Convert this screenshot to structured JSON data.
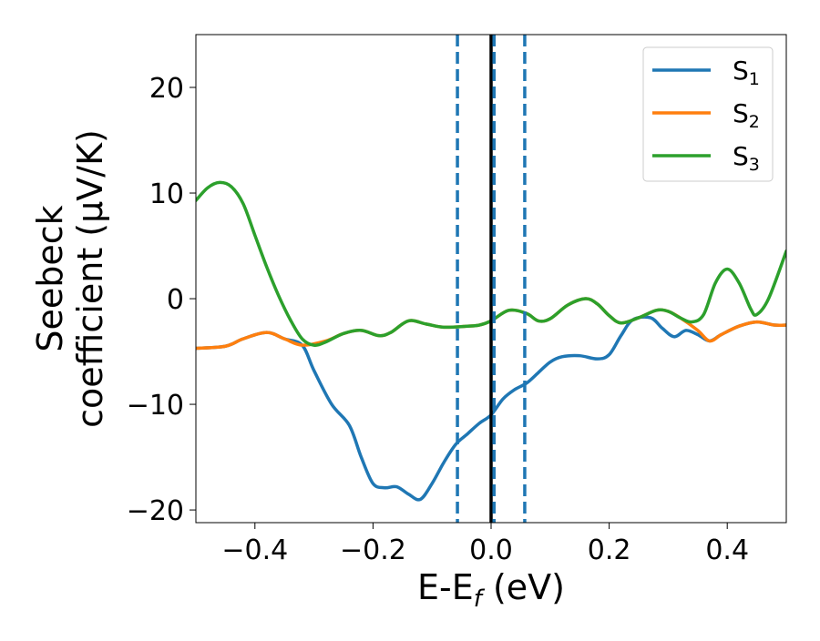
{
  "chart_data": {
    "type": "line",
    "xlabel": {
      "prefix": "E-E",
      "sub": "f",
      "suffix": " (eV)"
    },
    "ylabel": {
      "line1": "Seebeck",
      "line2": "coefficient  (μV/K)"
    },
    "xlim": [
      -0.5,
      0.5
    ],
    "ylim": [
      -21.2,
      25.0
    ],
    "xticks": [
      -0.4,
      -0.2,
      0.0,
      0.2,
      0.4
    ],
    "xtick_labels": [
      "−0.4",
      "−0.2",
      "0.0",
      "0.2",
      "0.4"
    ],
    "yticks": [
      -20,
      -10,
      0,
      10,
      20
    ],
    "ytick_labels": [
      "−20",
      "−10",
      "0",
      "10",
      "20"
    ],
    "grid": false,
    "legend_position": "top-right",
    "series": [
      {
        "name": {
          "base": "S",
          "sub": "1"
        },
        "color": "#1f77b4",
        "points": [
          [
            -0.5,
            -4.7
          ],
          [
            -0.45,
            -4.5
          ],
          [
            -0.42,
            -3.8
          ],
          [
            -0.38,
            -3.2
          ],
          [
            -0.35,
            -3.8
          ],
          [
            -0.32,
            -4.4
          ],
          [
            -0.3,
            -6.8
          ],
          [
            -0.27,
            -10.0
          ],
          [
            -0.24,
            -12.0
          ],
          [
            -0.22,
            -15.0
          ],
          [
            -0.2,
            -17.5
          ],
          [
            -0.18,
            -17.9
          ],
          [
            -0.16,
            -17.8
          ],
          [
            -0.14,
            -18.5
          ],
          [
            -0.12,
            -19.0
          ],
          [
            -0.1,
            -17.5
          ],
          [
            -0.08,
            -15.5
          ],
          [
            -0.06,
            -13.8
          ],
          [
            -0.04,
            -12.8
          ],
          [
            -0.02,
            -11.8
          ],
          [
            0.0,
            -11.0
          ],
          [
            0.02,
            -9.5
          ],
          [
            0.04,
            -8.6
          ],
          [
            0.06,
            -8.0
          ],
          [
            0.08,
            -7.0
          ],
          [
            0.1,
            -6.0
          ],
          [
            0.12,
            -5.5
          ],
          [
            0.15,
            -5.4
          ],
          [
            0.18,
            -5.7
          ],
          [
            0.2,
            -5.3
          ],
          [
            0.22,
            -3.5
          ],
          [
            0.24,
            -2.0
          ],
          [
            0.27,
            -1.8
          ],
          [
            0.29,
            -2.8
          ],
          [
            0.31,
            -3.6
          ],
          [
            0.33,
            -3.0
          ],
          [
            0.35,
            -3.4
          ],
          [
            0.37,
            -4.0
          ],
          [
            0.39,
            -3.4
          ],
          [
            0.42,
            -2.6
          ],
          [
            0.45,
            -2.2
          ],
          [
            0.48,
            -2.5
          ],
          [
            0.5,
            -2.5
          ]
        ]
      },
      {
        "name": {
          "base": "S",
          "sub": "2"
        },
        "color": "#ff7f0e",
        "points": [
          [
            -0.5,
            -4.7
          ],
          [
            -0.45,
            -4.5
          ],
          [
            -0.42,
            -3.8
          ],
          [
            -0.38,
            -3.2
          ],
          [
            -0.35,
            -3.8
          ],
          [
            -0.32,
            -4.4
          ],
          [
            -0.28,
            -4.0
          ],
          [
            -0.25,
            -3.3
          ],
          [
            -0.22,
            -3.0
          ],
          [
            -0.19,
            -3.5
          ],
          [
            -0.17,
            -3.2
          ],
          [
            -0.14,
            -2.1
          ],
          [
            -0.11,
            -2.4
          ],
          [
            -0.08,
            -2.7
          ],
          [
            -0.04,
            -2.6
          ],
          [
            -0.02,
            -2.5
          ],
          [
            0.0,
            -2.1
          ],
          [
            0.03,
            -1.1
          ],
          [
            0.06,
            -1.4
          ],
          [
            0.08,
            -2.1
          ],
          [
            0.1,
            -1.9
          ],
          [
            0.13,
            -0.6
          ],
          [
            0.16,
            0.0
          ],
          [
            0.18,
            -0.5
          ],
          [
            0.2,
            -1.6
          ],
          [
            0.22,
            -2.3
          ],
          [
            0.25,
            -1.8
          ],
          [
            0.28,
            -1.1
          ],
          [
            0.3,
            -1.2
          ],
          [
            0.32,
            -1.8
          ],
          [
            0.35,
            -3.0
          ],
          [
            0.37,
            -4.0
          ],
          [
            0.39,
            -3.4
          ],
          [
            0.42,
            -2.6
          ],
          [
            0.45,
            -2.2
          ],
          [
            0.48,
            -2.5
          ],
          [
            0.5,
            -2.5
          ]
        ]
      },
      {
        "name": {
          "base": "S",
          "sub": "3"
        },
        "color": "#2ca02c",
        "points": [
          [
            -0.5,
            9.3
          ],
          [
            -0.48,
            10.5
          ],
          [
            -0.46,
            11.0
          ],
          [
            -0.44,
            10.6
          ],
          [
            -0.42,
            9.0
          ],
          [
            -0.4,
            6.0
          ],
          [
            -0.38,
            3.0
          ],
          [
            -0.36,
            0.3
          ],
          [
            -0.34,
            -2.0
          ],
          [
            -0.32,
            -3.8
          ],
          [
            -0.3,
            -4.4
          ],
          [
            -0.28,
            -4.1
          ],
          [
            -0.25,
            -3.3
          ],
          [
            -0.22,
            -3.0
          ],
          [
            -0.19,
            -3.5
          ],
          [
            -0.17,
            -3.2
          ],
          [
            -0.14,
            -2.1
          ],
          [
            -0.11,
            -2.4
          ],
          [
            -0.08,
            -2.7
          ],
          [
            -0.04,
            -2.6
          ],
          [
            -0.02,
            -2.5
          ],
          [
            0.0,
            -2.1
          ],
          [
            0.03,
            -1.1
          ],
          [
            0.06,
            -1.4
          ],
          [
            0.08,
            -2.1
          ],
          [
            0.1,
            -1.9
          ],
          [
            0.13,
            -0.6
          ],
          [
            0.16,
            0.0
          ],
          [
            0.18,
            -0.5
          ],
          [
            0.2,
            -1.6
          ],
          [
            0.22,
            -2.3
          ],
          [
            0.25,
            -1.8
          ],
          [
            0.28,
            -1.1
          ],
          [
            0.3,
            -1.2
          ],
          [
            0.32,
            -1.8
          ],
          [
            0.34,
            -2.2
          ],
          [
            0.36,
            -1.5
          ],
          [
            0.38,
            1.5
          ],
          [
            0.4,
            2.8
          ],
          [
            0.42,
            1.5
          ],
          [
            0.44,
            -1.0
          ],
          [
            0.45,
            -1.5
          ],
          [
            0.47,
            0.0
          ],
          [
            0.5,
            4.5
          ]
        ]
      }
    ],
    "vlines": [
      {
        "x": -0.057,
        "style": "dashed",
        "color": "#1f77b4"
      },
      {
        "x": 0.0,
        "style": "solid",
        "color": "#000000"
      },
      {
        "x": 0.005,
        "style": "dashed",
        "color": "#1f77b4"
      },
      {
        "x": 0.057,
        "style": "dashed",
        "color": "#1f77b4"
      }
    ]
  }
}
